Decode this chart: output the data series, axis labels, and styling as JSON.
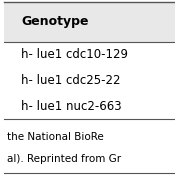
{
  "header": "Genotype",
  "rows": [
    "h- lue1 cdc10-129",
    "h- lue1 cdc25-22",
    "h- lue1 nuc2-663"
  ],
  "footer_lines": [
    "the National BioRe",
    "al). Reprinted from Gr"
  ],
  "bg_color": "#ffffff",
  "header_bg": "#e8e8e8",
  "line_color": "#555555",
  "header_font_size": 9,
  "row_font_size": 8.5,
  "footer_font_size": 7.5
}
